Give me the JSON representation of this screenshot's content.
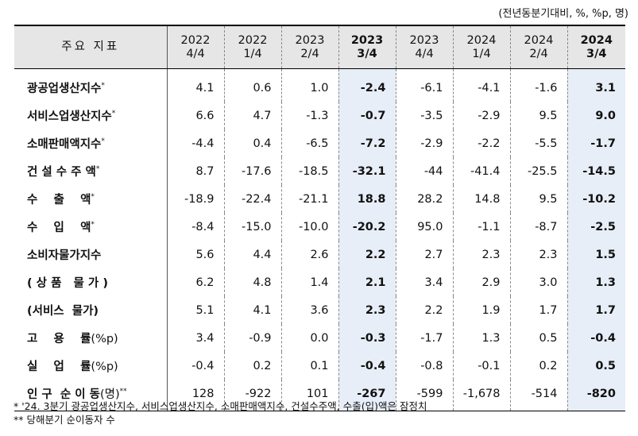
{
  "unit_note": "(전년동분기대비, %, %p, 명)",
  "header": {
    "label": "주요 지표",
    "periods": [
      {
        "year": "2022",
        "quarter": "4/4",
        "emphasis": false
      },
      {
        "year": "2022",
        "quarter": "1/4",
        "emphasis": false
      },
      {
        "year": "2023",
        "quarter": "2/4",
        "emphasis": false
      },
      {
        "year": "2023",
        "quarter": "3/4",
        "emphasis": true
      },
      {
        "year": "2023",
        "quarter": "4/4",
        "emphasis": false
      },
      {
        "year": "2024",
        "quarter": "1/4",
        "emphasis": false
      },
      {
        "year": "2024",
        "quarter": "2/4",
        "emphasis": false
      },
      {
        "year": "2024",
        "quarter": "3/4",
        "emphasis": true
      }
    ]
  },
  "rows": [
    {
      "label": "광공업생산지수",
      "mark": "*",
      "suffix": "",
      "values": [
        "4.1",
        "0.6",
        "1.0",
        "-2.4",
        "-6.1",
        "-4.1",
        "-1.6",
        "3.1"
      ]
    },
    {
      "label": "서비스업생산지수",
      "mark": "*",
      "suffix": "",
      "values": [
        "6.6",
        "4.7",
        "-1.3",
        "-0.7",
        "-3.5",
        "-2.9",
        "9.5",
        "9.0"
      ]
    },
    {
      "label": "소매판매액지수",
      "mark": "*",
      "suffix": "",
      "values": [
        "-4.4",
        "0.4",
        "-6.5",
        "-7.2",
        "-2.9",
        "-2.2",
        "-5.5",
        "-1.7"
      ]
    },
    {
      "label": "건 설 수 주 액",
      "mark": "*",
      "suffix": "",
      "values": [
        "8.7",
        "-17.6",
        "-18.5",
        "-32.1",
        "-44",
        "-41.4",
        "-25.5",
        "-14.5"
      ]
    },
    {
      "label": "수    출    액",
      "mark": "*",
      "suffix": "",
      "values": [
        "-18.9",
        "-22.4",
        "-21.1",
        "18.8",
        "28.2",
        "14.8",
        "9.5",
        "-10.2"
      ]
    },
    {
      "label": "수    입    액",
      "mark": "*",
      "suffix": "",
      "values": [
        "-8.4",
        "-15.0",
        "-10.0",
        "-20.2",
        "95.0",
        "-1.1",
        "-8.7",
        "-2.5"
      ]
    },
    {
      "label": "소비자물가지수",
      "mark": "",
      "suffix": "",
      "values": [
        "5.6",
        "4.4",
        "2.6",
        "2.2",
        "2.7",
        "2.3",
        "2.3",
        "1.5"
      ]
    },
    {
      "label": "( 상 품   물 가 )",
      "mark": "",
      "suffix": "",
      "values": [
        "6.2",
        "4.8",
        "1.4",
        "2.1",
        "3.4",
        "2.9",
        "3.0",
        "1.3"
      ]
    },
    {
      "label": "(서비스  물가)",
      "mark": "",
      "suffix": "",
      "values": [
        "5.1",
        "4.1",
        "3.6",
        "2.3",
        "2.2",
        "1.9",
        "1.7",
        "1.7"
      ]
    },
    {
      "label": "고    용    률",
      "mark": "",
      "suffix": "(%p)",
      "values": [
        "3.4",
        "-0.9",
        "0.0",
        "-0.3",
        "-1.7",
        "1.3",
        "0.5",
        "-0.4"
      ]
    },
    {
      "label": "실    업    률",
      "mark": "",
      "suffix": "(%p)",
      "values": [
        "-0.4",
        "0.2",
        "0.1",
        "-0.4",
        "-0.8",
        "-0.1",
        "0.2",
        "0.5"
      ]
    },
    {
      "label": "인 구  순 이 동",
      "mark": "**",
      "suffix": "(명)",
      "values": [
        "128",
        "-922",
        "101",
        "-267",
        "-599",
        "-1,678",
        "-514",
        "-820"
      ]
    }
  ],
  "footnotes": [
    "* '24. 3분기 광공업생산지수, 서비스업생산지수, 소매판매액지수, 건설수주액, 수출(입)액은 잠정치",
    "** 당해분기 순이동자 수"
  ]
}
